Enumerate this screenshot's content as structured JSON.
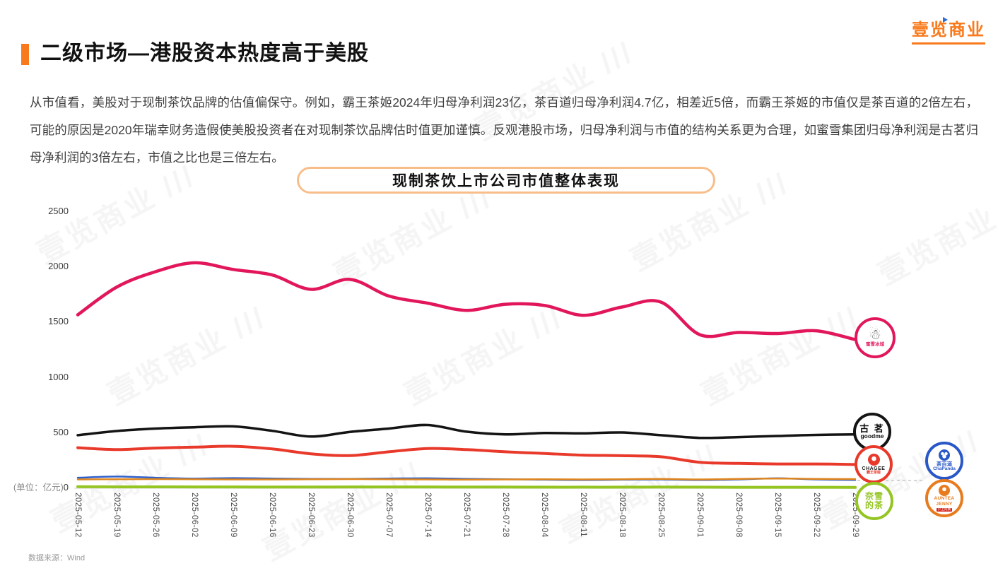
{
  "header": {
    "title": "二级市场—港股资本热度高于美股",
    "logo_text": "壹览商业"
  },
  "paragraph": "从市值看，美股对于现制茶饮品牌的估值偏保守。例如，霸王茶姬2024年归母净利润23亿，茶百道归母净利润4.7亿，相差近5倍，而霸王茶姬的市值仅是茶百道的2倍左右，可能的原因是2020年瑞幸财务造假使美股投资者在对现制茶饮品牌估时值更加谨慎。反观港股市场，归母净利润与市值的结构关系更为合理，如蜜雪集团归母净利润是古茗归母净利润的3倍左右，市值之比也是三倍左右。",
  "chart": {
    "title": "现制茶饮上市公司市值整体表现",
    "unit_label": "(单位：亿元)",
    "zero_label": "0",
    "source": "数据来源：Wind",
    "watermark_text": "壹览商业"
  },
  "chart_data": {
    "type": "line",
    "title": "现制茶饮上市公司市值整体表现",
    "unit": "亿元",
    "grid": false,
    "legend_position": "line-end-badges",
    "ylim": [
      0,
      2500
    ],
    "yticks": [
      0,
      500,
      1000,
      1500,
      2000,
      2500
    ],
    "x": [
      "2025-05-12",
      "2025-05-19",
      "2025-05-26",
      "2025-06-02",
      "2025-06-09",
      "2025-06-16",
      "2025-06-23",
      "2025-06-30",
      "2025-07-07",
      "2025-07-14",
      "2025-07-21",
      "2025-07-28",
      "2025-08-04",
      "2025-08-11",
      "2025-08-18",
      "2025-08-25",
      "2025-09-01",
      "2025-09-08",
      "2025-09-15",
      "2025-09-22",
      "2025-09-29"
    ],
    "series": [
      {
        "name": "蜜雪冰城",
        "color": "#E2175B",
        "values": [
          1570,
          1820,
          1960,
          2040,
          1980,
          1930,
          1800,
          1890,
          1740,
          1675,
          1610,
          1665,
          1655,
          1565,
          1640,
          1685,
          1390,
          1410,
          1400,
          1425,
          1345
        ]
      },
      {
        "name": "古茗 goodme",
        "color": "#141414",
        "values": [
          480,
          518,
          540,
          552,
          560,
          520,
          468,
          510,
          540,
          572,
          512,
          488,
          500,
          497,
          505,
          480,
          456,
          463,
          473,
          483,
          488
        ]
      },
      {
        "name": "霸王茶姬 CHAGEE",
        "color": "#E8392B",
        "values": [
          367,
          350,
          364,
          372,
          380,
          356,
          312,
          296,
          330,
          360,
          350,
          330,
          315,
          300,
          295,
          285,
          235,
          225,
          220,
          220,
          215
        ]
      },
      {
        "name": "茶百道 ChaPanda",
        "color": "#2E5FC9",
        "values": [
          95,
          106,
          95,
          88,
          92,
          88,
          85,
          85,
          88,
          90,
          85,
          82,
          78,
          75,
          78,
          80,
          75,
          80,
          90,
          80,
          75
        ]
      },
      {
        "name": "沪上阿姨 AUNTEA JENNY",
        "color": "#E0861F",
        "values": [
          80,
          82,
          83,
          82,
          80,
          80,
          82,
          83,
          82,
          80,
          78,
          80,
          82,
          80,
          82,
          85,
          80,
          85,
          88,
          85,
          83
        ]
      },
      {
        "name": "奈雪的茶",
        "color": "#94C522",
        "values": [
          14,
          13,
          13,
          12,
          12,
          11,
          11,
          12,
          12,
          12,
          11,
          11,
          10,
          10,
          10,
          11,
          10,
          9,
          9,
          9,
          8
        ]
      }
    ]
  },
  "badges": {
    "mixue": {
      "label": "蜜雪冰城",
      "icon": "snowman"
    },
    "goodme": {
      "cn": "古 茗",
      "en": "goodme"
    },
    "chagee": {
      "en": "CHAGEE",
      "cn": "霸王茶姬"
    },
    "nayuki": {
      "line1": "奈雪",
      "line2": "的茶"
    },
    "chapanda": {
      "cn": "茶百道",
      "en": "ChaPanda"
    },
    "auntea": {
      "en1": "AUNTEA",
      "en2": "JENNY",
      "cn": "沪上阿姨"
    }
  }
}
